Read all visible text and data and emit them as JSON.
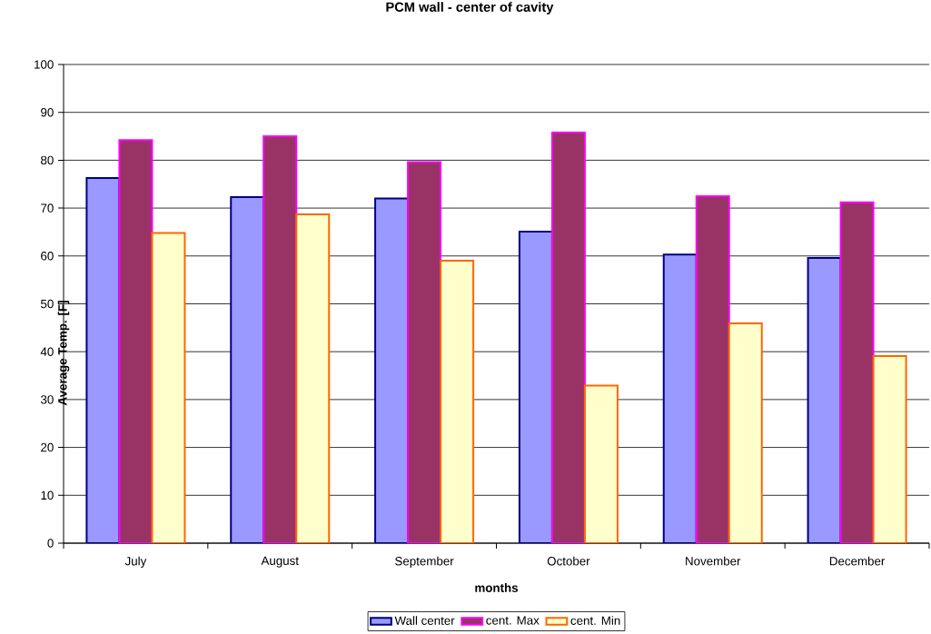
{
  "chart_data": {
    "type": "bar",
    "title": "PCM wall - center of cavity",
    "xlabel": "months",
    "ylabel": "Average Temp. [F]",
    "categories": [
      "July",
      "August",
      "September",
      "October",
      "November",
      "December"
    ],
    "series": [
      {
        "name": "Wall center",
        "color": "#9999ff",
        "values": [
          76.3,
          72.3,
          72.0,
          65.1,
          60.3,
          59.6
        ]
      },
      {
        "name": "cent. Max",
        "color": "#993366",
        "values": [
          84.2,
          85.0,
          79.6,
          85.8,
          72.5,
          71.2
        ]
      },
      {
        "name": "cent. Min",
        "color": "#ffffcc",
        "values": [
          64.8,
          68.7,
          59.0,
          32.9,
          45.9,
          39.1
        ]
      }
    ],
    "ylim": [
      0,
      100
    ],
    "yticks": [
      0,
      10,
      20,
      30,
      40,
      50,
      60,
      70,
      80,
      90,
      100
    ],
    "grid": "y",
    "legend": "bottom"
  }
}
